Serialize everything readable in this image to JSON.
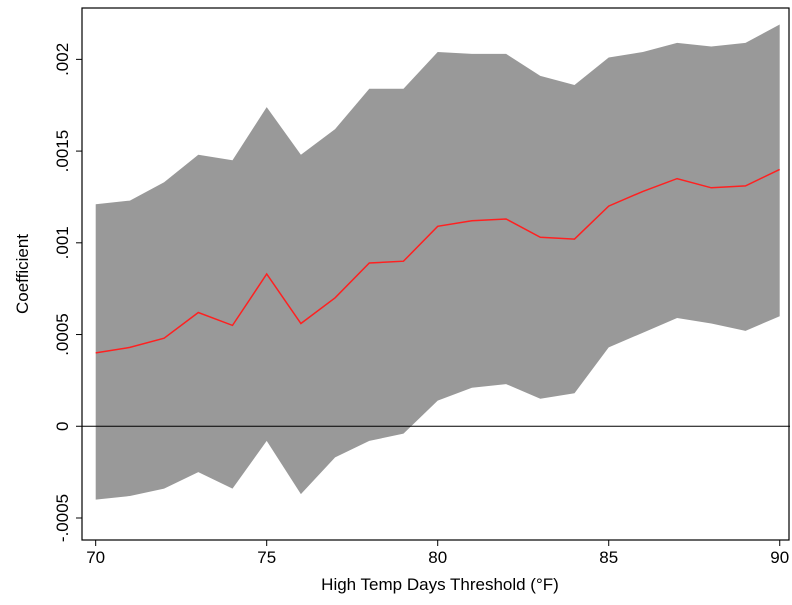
{
  "chart_data": {
    "type": "band-line",
    "x_label": "High Temp Days Threshold (°F)",
    "y_label": "Coefficient",
    "x": [
      70,
      71,
      72,
      73,
      74,
      75,
      76,
      77,
      78,
      79,
      80,
      81,
      82,
      83,
      84,
      85,
      86,
      87,
      88,
      89,
      90
    ],
    "line": {
      "color": "#ff2020",
      "values": [
        0.0004,
        0.00043,
        0.00048,
        0.00062,
        0.00055,
        0.00083,
        0.00056,
        0.0007,
        0.00089,
        0.0009,
        0.00109,
        0.00112,
        0.00113,
        0.00103,
        0.00102,
        0.0012,
        0.00128,
        0.00135,
        0.0013,
        0.00131,
        0.0014
      ]
    },
    "band": {
      "color": "#999999",
      "upper": [
        0.00121,
        0.00123,
        0.00133,
        0.00148,
        0.00145,
        0.00174,
        0.00148,
        0.00162,
        0.00184,
        0.00184,
        0.00204,
        0.00203,
        0.00203,
        0.00191,
        0.00186,
        0.00201,
        0.00204,
        0.00209,
        0.00207,
        0.00209,
        0.00219
      ],
      "lower": [
        -0.0004,
        -0.00038,
        -0.00034,
        -0.00025,
        -0.00034,
        -8e-05,
        -0.00037,
        -0.00017,
        -8e-05,
        -4e-05,
        0.00014,
        0.00021,
        0.00023,
        0.00015,
        0.00018,
        0.00043,
        0.00051,
        0.00059,
        0.00056,
        0.00052,
        0.0006
      ]
    },
    "reference_line": 0,
    "xlim": [
      69.6,
      90.3
    ],
    "ylim": [
      -0.00062,
      0.00228
    ],
    "xticks": [
      70,
      75,
      80,
      85,
      90
    ],
    "yticks": [
      {
        "value": -0.0005,
        "label": "-.0005"
      },
      0,
      {
        "value": 0.0005,
        "label": ".0005"
      },
      {
        "value": 0.001,
        "label": ".001"
      },
      {
        "value": 0.0015,
        "label": ".0015"
      },
      {
        "value": 0.002,
        "label": ".002"
      }
    ]
  }
}
